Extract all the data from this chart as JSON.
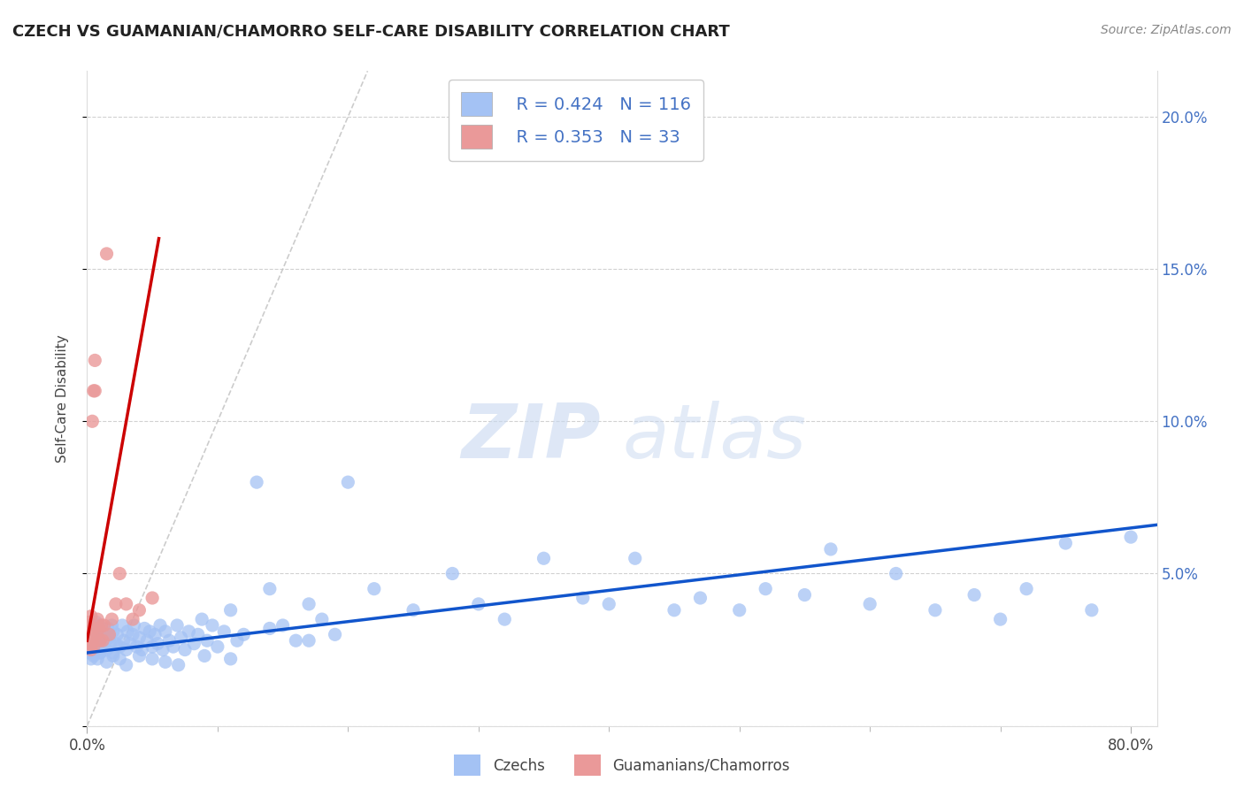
{
  "title": "CZECH VS GUAMANIAN/CHAMORRO SELF-CARE DISABILITY CORRELATION CHART",
  "source": "Source: ZipAtlas.com",
  "ylabel": "Self-Care Disability",
  "xlim": [
    0.0,
    0.82
  ],
  "ylim": [
    0.0,
    0.215
  ],
  "blue_R": 0.424,
  "blue_N": 116,
  "pink_R": 0.353,
  "pink_N": 33,
  "blue_color": "#a4c2f4",
  "pink_color": "#ea9999",
  "blue_line_color": "#1155cc",
  "pink_line_color": "#cc0000",
  "blue_scatter_x": [
    0.001,
    0.001,
    0.002,
    0.003,
    0.003,
    0.003,
    0.004,
    0.004,
    0.005,
    0.005,
    0.006,
    0.006,
    0.007,
    0.007,
    0.008,
    0.008,
    0.009,
    0.009,
    0.01,
    0.01,
    0.012,
    0.013,
    0.014,
    0.015,
    0.016,
    0.017,
    0.018,
    0.019,
    0.02,
    0.02,
    0.022,
    0.023,
    0.025,
    0.027,
    0.028,
    0.03,
    0.031,
    0.033,
    0.035,
    0.036,
    0.038,
    0.04,
    0.042,
    0.044,
    0.046,
    0.048,
    0.05,
    0.052,
    0.054,
    0.056,
    0.058,
    0.06,
    0.063,
    0.066,
    0.069,
    0.072,
    0.075,
    0.078,
    0.082,
    0.085,
    0.088,
    0.092,
    0.096,
    0.1,
    0.105,
    0.11,
    0.115,
    0.12,
    0.13,
    0.14,
    0.15,
    0.16,
    0.17,
    0.18,
    0.19,
    0.2,
    0.22,
    0.25,
    0.28,
    0.3,
    0.32,
    0.35,
    0.38,
    0.4,
    0.42,
    0.45,
    0.47,
    0.5,
    0.52,
    0.55,
    0.57,
    0.6,
    0.62,
    0.65,
    0.68,
    0.7,
    0.72,
    0.75,
    0.77,
    0.8,
    0.003,
    0.005,
    0.008,
    0.01,
    0.015,
    0.02,
    0.025,
    0.03,
    0.04,
    0.05,
    0.06,
    0.07,
    0.09,
    0.11,
    0.14,
    0.17
  ],
  "blue_scatter_y": [
    0.026,
    0.029,
    0.024,
    0.027,
    0.03,
    0.033,
    0.025,
    0.031,
    0.028,
    0.033,
    0.025,
    0.032,
    0.027,
    0.034,
    0.025,
    0.03,
    0.028,
    0.033,
    0.024,
    0.031,
    0.026,
    0.03,
    0.028,
    0.025,
    0.032,
    0.029,
    0.027,
    0.033,
    0.024,
    0.031,
    0.027,
    0.03,
    0.026,
    0.033,
    0.028,
    0.025,
    0.031,
    0.027,
    0.03,
    0.033,
    0.026,
    0.029,
    0.025,
    0.032,
    0.028,
    0.031,
    0.026,
    0.03,
    0.027,
    0.033,
    0.025,
    0.031,
    0.028,
    0.026,
    0.033,
    0.029,
    0.025,
    0.031,
    0.027,
    0.03,
    0.035,
    0.028,
    0.033,
    0.026,
    0.031,
    0.038,
    0.028,
    0.03,
    0.08,
    0.045,
    0.033,
    0.028,
    0.04,
    0.035,
    0.03,
    0.08,
    0.045,
    0.038,
    0.05,
    0.04,
    0.035,
    0.055,
    0.042,
    0.04,
    0.055,
    0.038,
    0.042,
    0.038,
    0.045,
    0.043,
    0.058,
    0.04,
    0.05,
    0.038,
    0.043,
    0.035,
    0.045,
    0.06,
    0.038,
    0.062,
    0.022,
    0.023,
    0.022,
    0.024,
    0.021,
    0.023,
    0.022,
    0.02,
    0.023,
    0.022,
    0.021,
    0.02,
    0.023,
    0.022,
    0.032,
    0.028
  ],
  "pink_scatter_x": [
    0.001,
    0.001,
    0.001,
    0.002,
    0.002,
    0.002,
    0.003,
    0.003,
    0.003,
    0.003,
    0.004,
    0.004,
    0.004,
    0.005,
    0.005,
    0.006,
    0.006,
    0.007,
    0.008,
    0.009,
    0.01,
    0.011,
    0.012,
    0.013,
    0.015,
    0.017,
    0.019,
    0.022,
    0.025,
    0.03,
    0.035,
    0.04,
    0.05
  ],
  "pink_scatter_y": [
    0.028,
    0.031,
    0.034,
    0.027,
    0.03,
    0.033,
    0.025,
    0.028,
    0.032,
    0.036,
    0.1,
    0.027,
    0.031,
    0.026,
    0.11,
    0.11,
    0.12,
    0.03,
    0.035,
    0.032,
    0.028,
    0.033,
    0.028,
    0.033,
    0.155,
    0.03,
    0.035,
    0.04,
    0.05,
    0.04,
    0.035,
    0.038,
    0.042
  ],
  "watermark_zip": "ZIP",
  "watermark_atlas": "atlas",
  "legend_label_blue": "Czechs",
  "legend_label_pink": "Guamanians/Chamorros",
  "bg_color": "#ffffff",
  "grid_color": "#cccccc",
  "ref_line_color": "#c0c0c0",
  "blue_line_x_start": 0.0,
  "blue_line_x_end": 0.82,
  "pink_line_x_start": 0.0,
  "pink_line_x_end": 0.055
}
